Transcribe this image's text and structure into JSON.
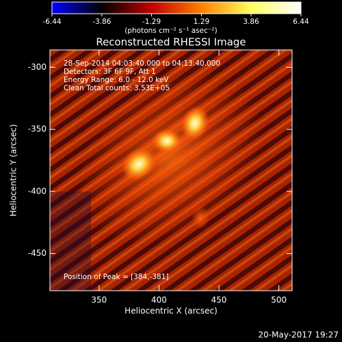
{
  "chart_data": {
    "type": "image",
    "title": "Reconstructed RHESSI Image",
    "xlabel": "Heliocentric X (arcsec)",
    "ylabel": "Heliocentric Y (arcsec)",
    "xlim": [
      309,
      511
    ],
    "ylim": [
      -480,
      -286
    ],
    "xticks": [
      350,
      400,
      450,
      500
    ],
    "yticks": [
      -300,
      -350,
      -400,
      -450
    ],
    "colorbar": {
      "clim": [
        -6.44,
        6.44
      ],
      "ticks": [
        -6.44,
        -3.86,
        -1.29,
        1.29,
        3.86,
        6.44
      ],
      "label": "(photons cm⁻² s⁻¹ asec⁻²)",
      "colors": [
        "#0000ff",
        "#000000",
        "#c00000",
        "#ff8000",
        "#ffff60",
        "#ffffff"
      ]
    },
    "annotations": [
      "28-Sep-2014 04:03:40.000 to 04:13:40.000",
      "Detectors: 3F 6F 9F, Att 1",
      "Energy Range: 6.0 - 12.0 keV",
      "Clean     Total counts: 3.53E+05"
    ],
    "peak_text": "Position of Peak = [384,-381]",
    "timestamp": "20-May-2017 19:27"
  }
}
